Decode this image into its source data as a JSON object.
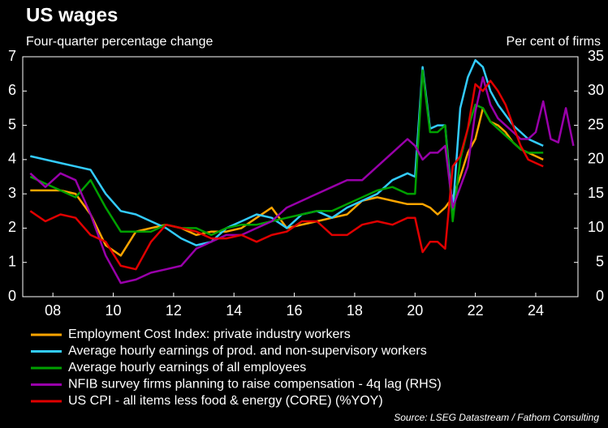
{
  "chart_data": {
    "type": "line",
    "title": "US wages",
    "subtitle": "Four-quarter percentage change",
    "y2_label": "Per cent of firms",
    "source": "Source: LSEG Datastream / Fathom Consulting",
    "x": [
      2007.25,
      2007.75,
      2008.25,
      2008.75,
      2009.25,
      2009.75,
      2010.25,
      2010.75,
      2011.25,
      2011.75,
      2012.25,
      2012.75,
      2013.25,
      2013.75,
      2014.25,
      2014.75,
      2015.25,
      2015.75,
      2016.25,
      2016.75,
      2017.25,
      2017.75,
      2018.25,
      2018.75,
      2019.25,
      2019.75,
      2020.0,
      2020.25,
      2020.5,
      2020.75,
      2021.0,
      2021.25,
      2021.5,
      2021.75,
      2022.0,
      2022.25,
      2022.5,
      2022.75,
      2023.0,
      2023.25,
      2023.5,
      2023.75,
      2024.0,
      2024.25,
      2024.5,
      2024.75,
      2025.0,
      2025.25
    ],
    "xlim": [
      2007,
      2025.4
    ],
    "xticks": [
      {
        "value": 2008,
        "label": "08"
      },
      {
        "value": 2010,
        "label": "10"
      },
      {
        "value": 2012,
        "label": "12"
      },
      {
        "value": 2014,
        "label": "14"
      },
      {
        "value": 2016,
        "label": "16"
      },
      {
        "value": 2018,
        "label": "18"
      },
      {
        "value": 2020,
        "label": "20"
      },
      {
        "value": 2022,
        "label": "22"
      },
      {
        "value": 2024,
        "label": "24"
      }
    ],
    "ylim": [
      0,
      7
    ],
    "yticks": [
      0,
      1,
      2,
      3,
      4,
      5,
      6,
      7
    ],
    "y2lim": [
      0,
      35
    ],
    "y2ticks": [
      0,
      5,
      10,
      15,
      20,
      25,
      30,
      35
    ],
    "series": [
      {
        "name": "Employment Cost Index: private industry workers",
        "color": "#ffa500",
        "values": [
          3.1,
          3.1,
          3.1,
          3.0,
          2.4,
          1.5,
          1.2,
          1.9,
          2.0,
          2.1,
          2.0,
          1.8,
          1.9,
          1.9,
          2.0,
          2.3,
          2.6,
          2.0,
          2.1,
          2.2,
          2.3,
          2.4,
          2.8,
          2.9,
          2.8,
          2.7,
          2.7,
          2.7,
          2.6,
          2.4,
          2.6,
          2.9,
          3.5,
          4.2,
          4.6,
          5.5,
          5.1,
          5.0,
          4.8,
          4.5,
          4.3,
          4.2,
          4.1,
          4.0,
          null,
          null,
          null,
          null
        ]
      },
      {
        "name": "Average hourly earnings of prod. and non-supervisory workers",
        "color": "#33ccff",
        "values": [
          4.1,
          4.0,
          3.9,
          3.8,
          3.7,
          3.0,
          2.5,
          2.4,
          2.2,
          2.0,
          1.7,
          1.5,
          1.6,
          2.0,
          2.2,
          2.4,
          2.3,
          2.0,
          2.4,
          2.5,
          2.3,
          2.6,
          2.8,
          3.0,
          3.4,
          3.6,
          3.5,
          6.7,
          4.9,
          5.0,
          5.0,
          2.5,
          5.5,
          6.4,
          6.9,
          6.7,
          6.0,
          5.6,
          5.3,
          5.0,
          4.8,
          4.6,
          4.5,
          4.4,
          null,
          null,
          null,
          null
        ]
      },
      {
        "name": "Average hourly earnings of all employees",
        "color": "#00a000",
        "values": [
          3.5,
          3.3,
          3.1,
          2.9,
          3.4,
          2.6,
          1.9,
          1.9,
          1.9,
          2.1,
          2.0,
          2.0,
          1.8,
          2.0,
          2.1,
          2.1,
          2.2,
          2.3,
          2.4,
          2.5,
          2.5,
          2.7,
          2.9,
          3.1,
          3.2,
          3.0,
          3.0,
          6.6,
          4.8,
          4.8,
          5.0,
          2.2,
          4.0,
          4.9,
          5.6,
          5.5,
          5.1,
          4.9,
          4.7,
          4.5,
          4.3,
          4.2,
          4.2,
          4.2,
          null,
          null,
          null,
          null
        ]
      },
      {
        "name": "NFIB survey firms planning to raise compensation - 4q lag (RHS)",
        "color": "#9900aa",
        "axis": "y2",
        "values": [
          18,
          16,
          18,
          17,
          12,
          6,
          2,
          2.5,
          3.5,
          4,
          4.5,
          7,
          8,
          9,
          9,
          10,
          11,
          13,
          14,
          15,
          16,
          17,
          17,
          19,
          21,
          23,
          22,
          20,
          21,
          21,
          22,
          13,
          16,
          19,
          27,
          32,
          28,
          26,
          25,
          24,
          23,
          23,
          24,
          28.5,
          23,
          22.5,
          27.5,
          22
        ]
      },
      {
        "name": "US CPI - all items less food & energy (CORE) (%YOY)",
        "color": "#e00000",
        "values": [
          2.5,
          2.2,
          2.4,
          2.3,
          1.8,
          1.6,
          0.9,
          0.8,
          1.6,
          2.1,
          2.0,
          1.9,
          1.7,
          1.7,
          1.8,
          1.6,
          1.8,
          1.9,
          2.2,
          2.2,
          1.8,
          1.8,
          2.1,
          2.2,
          2.1,
          2.3,
          2.3,
          1.3,
          1.6,
          1.6,
          1.4,
          3.8,
          4.1,
          4.9,
          6.2,
          6.0,
          6.3,
          6.0,
          5.6,
          5.0,
          4.4,
          4.0,
          3.9,
          3.8,
          null,
          null,
          null,
          null
        ]
      }
    ]
  }
}
